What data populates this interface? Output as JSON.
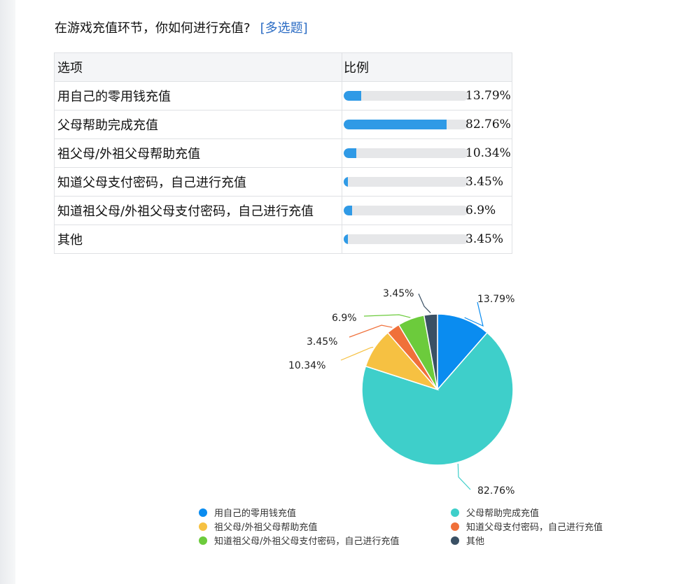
{
  "question": {
    "text": "在游戏充值环节，你如何进行充值?",
    "tag": "[多选题]"
  },
  "table": {
    "header": [
      "选项",
      "比例"
    ],
    "rows": [
      {
        "label": "用自己的零用钱充值",
        "value": 13.79,
        "pct": "13.79%"
      },
      {
        "label": "父母帮助完成充值",
        "value": 82.76,
        "pct": "82.76%"
      },
      {
        "label": "祖父母/外祖父母帮助充值",
        "value": 10.34,
        "pct": "10.34%"
      },
      {
        "label": "知道父母支付密码，自己进行充值",
        "value": 3.45,
        "pct": "3.45%"
      },
      {
        "label": "知道祖父母/外祖父母支付密码，自己进行充值",
        "value": 6.9,
        "pct": "6.9%"
      },
      {
        "label": "其他",
        "value": 3.45,
        "pct": "3.45%"
      }
    ]
  },
  "chart_data": {
    "type": "pie",
    "title": "",
    "categories": [
      "用自己的零用钱充值",
      "父母帮助完成充值",
      "祖父母/外祖父母帮助充值",
      "知道父母支付密码，自己进行充值",
      "知道祖父母/外祖父母支付密码，自己进行充值",
      "其他"
    ],
    "values": [
      13.79,
      82.76,
      10.34,
      3.45,
      6.9,
      3.45
    ],
    "labels": [
      "13.79%",
      "82.76%",
      "10.34%",
      "3.45%",
      "6.9%",
      "3.45%"
    ],
    "colors": [
      "#0a8cf0",
      "#3ecfca",
      "#f6c142",
      "#f0703a",
      "#6ccb3c",
      "#3a5064"
    ],
    "legend_position": "bottom"
  }
}
